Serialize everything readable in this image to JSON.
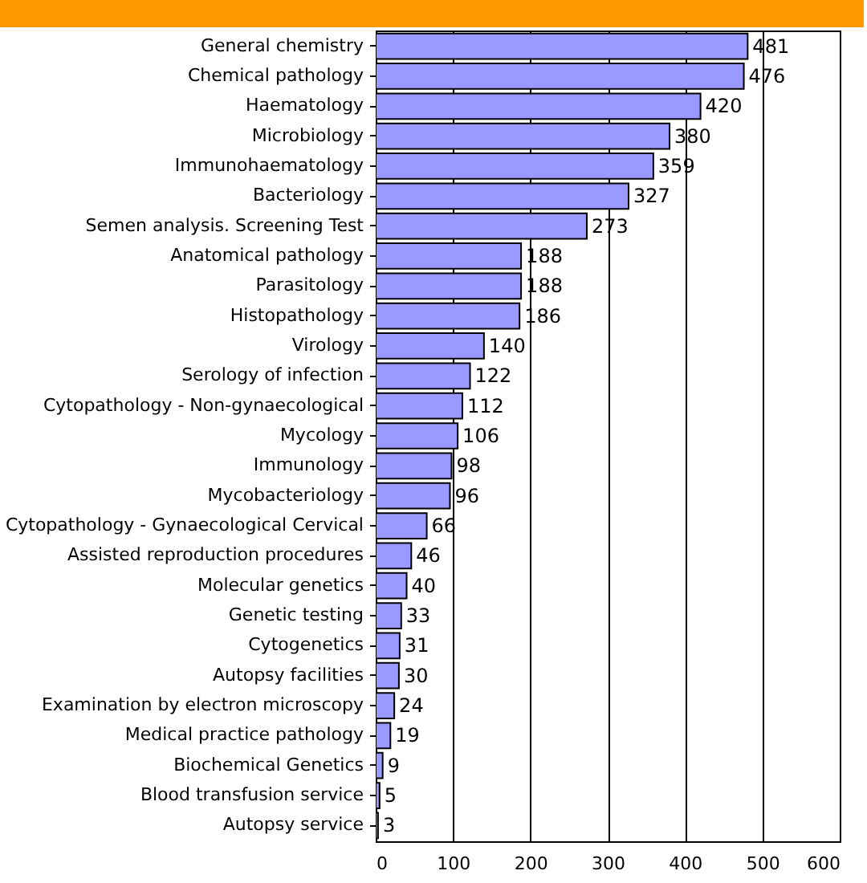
{
  "chart_data": {
    "type": "bar",
    "orientation": "horizontal",
    "categories": [
      "General chemistry",
      "Chemical pathology",
      "Haematology",
      "Microbiology",
      "Immunohaematology",
      "Bacteriology",
      "Semen analysis. Screening Test",
      "Anatomical pathology",
      "Parasitology",
      "Histopathology",
      "Virology",
      "Serology of infection",
      "Cytopathology - Non-gynaecological",
      "Mycology",
      "Immunology",
      "Mycobacteriology",
      "Cytopathology - Gynaecological Cervical",
      "Assisted reproduction procedures",
      "Molecular genetics",
      "Genetic testing",
      "Cytogenetics",
      "Autopsy facilities",
      "Examination by electron microscopy",
      "Medical practice pathology",
      "Biochemical Genetics",
      "Blood transfusion service",
      "Autopsy service"
    ],
    "values": [
      481,
      476,
      420,
      380,
      359,
      327,
      273,
      188,
      188,
      186,
      140,
      122,
      112,
      106,
      98,
      96,
      66,
      46,
      40,
      33,
      31,
      30,
      24,
      19,
      9,
      5,
      3
    ],
    "color": "#9999ff",
    "xlim": [
      0,
      600
    ],
    "xticks": [
      0,
      100,
      200,
      300,
      400,
      500,
      600
    ],
    "grid": "x",
    "data_labels": true
  }
}
